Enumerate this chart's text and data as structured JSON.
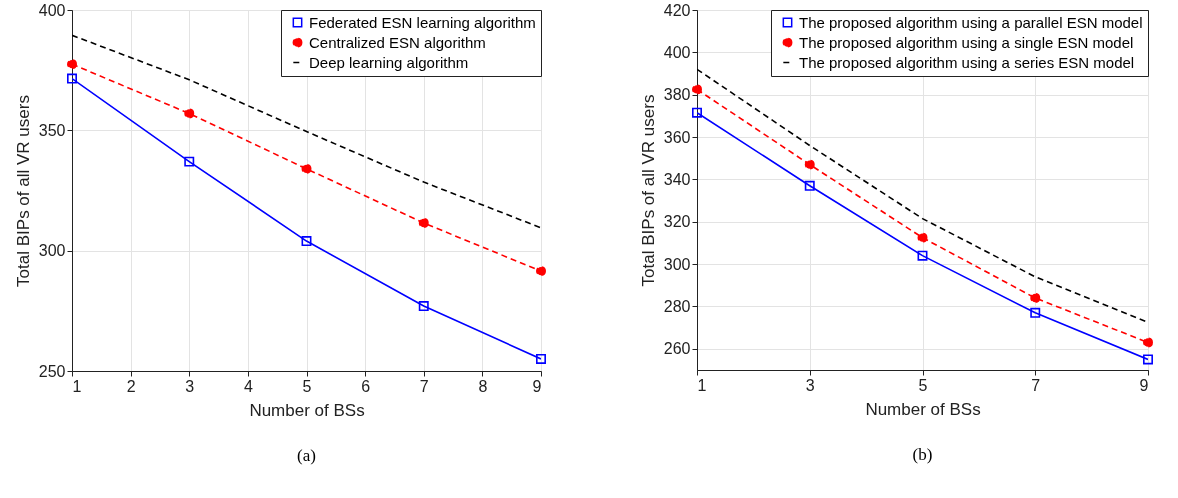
{
  "chart_data": [
    {
      "type": "line",
      "xlabel": "Number of BSs",
      "ylabel": "Total BIPs of all VR users",
      "annotations": [
        "(a)"
      ],
      "x": [
        1,
        3,
        5,
        7,
        9
      ],
      "xlim": [
        1,
        9
      ],
      "xticks": [
        1,
        2,
        3,
        4,
        5,
        6,
        7,
        8,
        9
      ],
      "ylim": [
        250,
        400
      ],
      "yticks": [
        250,
        300,
        350,
        400
      ],
      "grid": true,
      "legend": "top right",
      "series": [
        {
          "name": "Federated ESN learning algorithm",
          "color": "#0000ff",
          "marker": "square",
          "line_style": "solid",
          "values": [
            371.5,
            337,
            304,
            277,
            255
          ]
        },
        {
          "name": "Centralized ESN algorithm",
          "color": "#ff0000",
          "marker": "circle",
          "line_style": "dashed",
          "values": [
            377.5,
            357,
            334,
            311.5,
            291.5
          ]
        },
        {
          "name": "Deep learning algorithm",
          "color": "#000000",
          "marker": "none",
          "line_style": "dashed",
          "values": [
            389.5,
            371,
            349.5,
            328.5,
            309.5
          ]
        }
      ]
    },
    {
      "type": "line",
      "xlabel": "Number of BSs",
      "ylabel": "Total BIPs of all VR users",
      "annotations": [
        "(b)"
      ],
      "x": [
        1,
        3,
        5,
        7,
        9
      ],
      "xlim": [
        1,
        9
      ],
      "xticks": [
        1,
        3,
        5,
        7,
        9
      ],
      "ylim": [
        250,
        420
      ],
      "yticks": [
        260,
        280,
        300,
        320,
        340,
        360,
        380,
        400,
        420
      ],
      "grid": true,
      "legend": "top right",
      "series": [
        {
          "name": "The proposed algorithm using a parallel ESN model",
          "color": "#0000ff",
          "marker": "square",
          "line_style": "solid",
          "values": [
            371.5,
            337,
            304,
            277,
            255
          ]
        },
        {
          "name": "The proposed algorithm using a single ESN model",
          "color": "#ff0000",
          "marker": "circle",
          "line_style": "dashed",
          "values": [
            382.5,
            347,
            312.5,
            284,
            263
          ]
        },
        {
          "name": "The proposed algorithm using a series ESN model",
          "color": "#000000",
          "marker": "none",
          "line_style": "dashed",
          "values": [
            392,
            356,
            321.5,
            294,
            272.5
          ]
        }
      ]
    }
  ]
}
